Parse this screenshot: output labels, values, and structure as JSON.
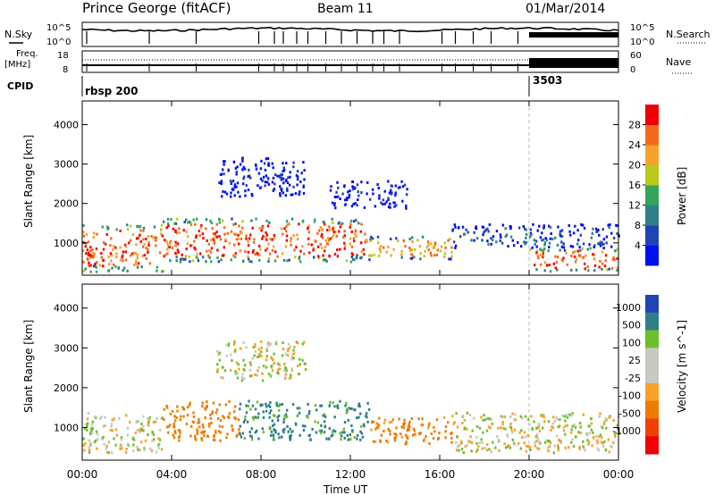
{
  "header": {
    "station": "Prince George (fitACF)",
    "beam": "Beam 11",
    "date": "01/Mar/2014"
  },
  "top_panels": {
    "nsky_label": "N.Sky",
    "nsky_top": "10^5",
    "nsky_bottom": "10^0",
    "nsearch_label": "N.Search",
    "nsearch_top": "10^5",
    "nsearch_bottom": "10^0",
    "freq_label_1": "Freq.",
    "freq_label_2": "[MHz]",
    "freq_top": "18",
    "freq_bottom": "8",
    "nave_label": "Nave",
    "nave_top": "60",
    "nave_bottom": "0",
    "cpid_label": "CPID",
    "cpid_segments": [
      {
        "name": "rbsp 200",
        "start_hour": 0
      },
      {
        "name": "3503",
        "start_hour": 20
      }
    ]
  },
  "chart_data": [
    {
      "type": "heatmap",
      "name": "power",
      "ylabel": "Slant Range [km]",
      "xlabel": "Time UT",
      "x_ticks": [
        "00:00",
        "04:00",
        "08:00",
        "12:00",
        "16:00",
        "20:00",
        "00:00"
      ],
      "xlim_hours": [
        0,
        24
      ],
      "y_ticks": [
        1000,
        2000,
        3000,
        4000
      ],
      "ylim": [
        180,
        4600
      ],
      "colorbar_label": "Power [dB]",
      "colorbar_ticks": [
        "28",
        "24",
        "20",
        "16",
        "12",
        "8",
        "4"
      ],
      "colorbar_colors": [
        "#0010f0",
        "#1f43b5",
        "#2e7e88",
        "#34a55a",
        "#b6cb1a",
        "#f7a02a",
        "#f26a1a",
        "#f00000"
      ],
      "mode_change_hour": 20,
      "regions": [
        {
          "t0": 0.0,
          "t1": 3.6,
          "r0": 300,
          "r1": 1500,
          "level": 7
        },
        {
          "t0": 3.6,
          "t1": 12.8,
          "r0": 550,
          "r1": 1650,
          "level": 7
        },
        {
          "t0": 12.8,
          "t1": 16.5,
          "r0": 600,
          "r1": 1200,
          "level": 6
        },
        {
          "t0": 20.0,
          "t1": 24.0,
          "r0": 300,
          "r1": 900,
          "level": 7
        },
        {
          "t0": 6.0,
          "t1": 10.0,
          "r0": 2200,
          "r1": 3200,
          "level": 1
        },
        {
          "t0": 11.0,
          "t1": 14.5,
          "r0": 1900,
          "r1": 2600,
          "level": 1
        },
        {
          "t0": 16.5,
          "t1": 24.0,
          "r0": 900,
          "r1": 1500,
          "level": 2
        }
      ]
    },
    {
      "type": "heatmap",
      "name": "velocity",
      "ylabel": "Slant Range [km]",
      "xlabel": "Time UT",
      "x_ticks": [
        "00:00",
        "04:00",
        "08:00",
        "12:00",
        "16:00",
        "20:00",
        "00:00"
      ],
      "xlim_hours": [
        0,
        24
      ],
      "y_ticks": [
        1000,
        2000,
        3000,
        4000
      ],
      "ylim": [
        180,
        4600
      ],
      "colorbar_label": "Velocity [m s^-1]",
      "colorbar_ticks": [
        "1000",
        "500",
        "100",
        "25",
        "-25",
        "-100",
        "-500",
        "-1000"
      ],
      "colorbar_colors": [
        "#f00000",
        "#f04000",
        "#f07a00",
        "#f7a02a",
        "#c8c8c0",
        "#c8c8c0",
        "#6cbf2a",
        "#2e7e88",
        "#1f43b5"
      ],
      "mode_change_hour": 20,
      "regions": [
        {
          "t0": 0.0,
          "t1": 3.6,
          "r0": 400,
          "r1": 1400,
          "v": 0
        },
        {
          "t0": 3.6,
          "t1": 7.0,
          "r0": 700,
          "r1": 1700,
          "v": -300
        },
        {
          "t0": 7.0,
          "t1": 12.8,
          "r0": 700,
          "r1": 1700,
          "v": 150
        },
        {
          "t0": 12.8,
          "t1": 16.5,
          "r0": 600,
          "r1": 1300,
          "v": -150
        },
        {
          "t0": 16.5,
          "t1": 24.0,
          "r0": 400,
          "r1": 1400,
          "v": 0
        },
        {
          "t0": 6.0,
          "t1": 10.0,
          "r0": 2200,
          "r1": 3200,
          "v": 0
        }
      ]
    }
  ]
}
